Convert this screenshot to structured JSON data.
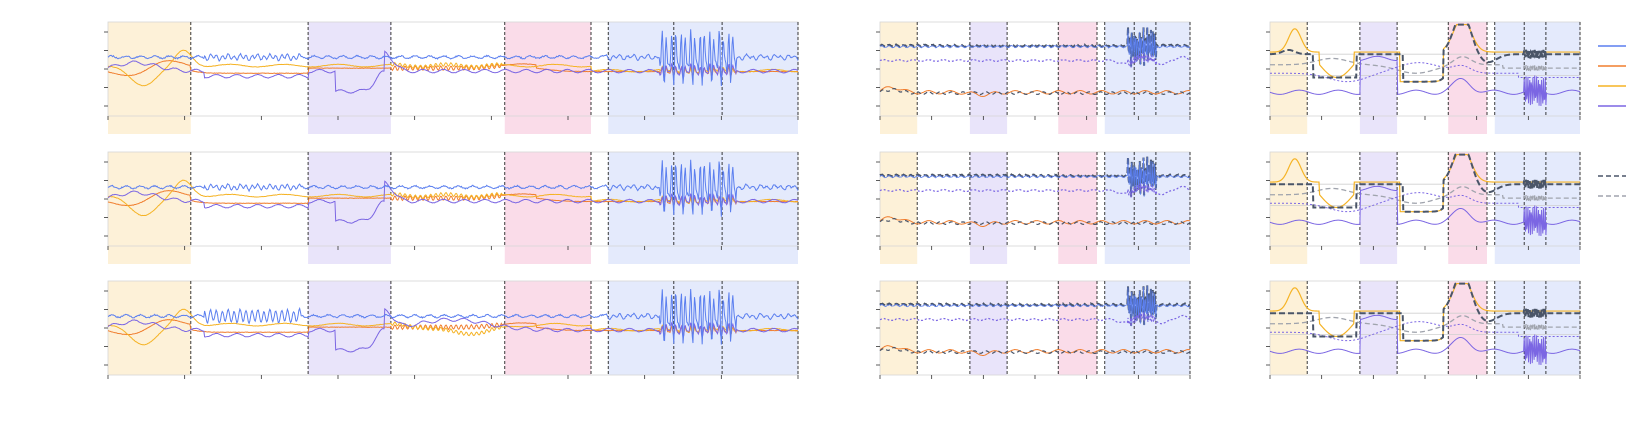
{
  "figure": {
    "colors": {
      "yellow_band": "#fdf1d8",
      "purple_band": "#e9e4fa",
      "pink_band": "#fadce9",
      "blue_band": "#e4eafc",
      "series_blue": "#5b7fef",
      "series_orange": "#f07e2f",
      "series_yellow": "#f5b325",
      "series_purple": "#7b66e3",
      "dash_dark": "#4a5568",
      "dash_gray": "#a0a4ad",
      "frame": "#d6d6d6",
      "tick": "#333333"
    }
  },
  "chart_data": [
    {
      "type": "line",
      "panel": "left",
      "rows": 3,
      "x_range": [
        0,
        100
      ],
      "bands": [
        {
          "from": 0,
          "to": 12,
          "color": "yellow"
        },
        {
          "from": 29,
          "to": 41,
          "color": "purple"
        },
        {
          "from": 57.5,
          "to": 70,
          "color": "pink"
        },
        {
          "from": 72.5,
          "to": 100,
          "color": "blue"
        }
      ],
      "dashed_lines": [
        12,
        29,
        41,
        57.5,
        70,
        72.5,
        82,
        89,
        100
      ],
      "series_colors": [
        "series_blue",
        "series_orange",
        "series_yellow",
        "series_purple"
      ],
      "grid": false
    },
    {
      "type": "line",
      "panel": "middle",
      "rows": 3,
      "x_range": [
        0,
        100
      ],
      "bands": [
        {
          "from": 0,
          "to": 12,
          "color": "yellow"
        },
        {
          "from": 29,
          "to": 41,
          "color": "purple"
        },
        {
          "from": 57.5,
          "to": 70,
          "color": "pink"
        },
        {
          "from": 72.5,
          "to": 100,
          "color": "blue"
        }
      ],
      "dashed_lines": [
        12,
        29,
        41,
        57.5,
        70,
        72.5,
        82,
        89,
        100
      ],
      "grid": false
    },
    {
      "type": "line",
      "panel": "right",
      "rows": 3,
      "x_range": [
        0,
        100
      ],
      "bands": [
        {
          "from": 0,
          "to": 12,
          "color": "yellow"
        },
        {
          "from": 29,
          "to": 41,
          "color": "purple"
        },
        {
          "from": 57.5,
          "to": 70,
          "color": "pink"
        },
        {
          "from": 72.5,
          "to": 100,
          "color": "blue"
        }
      ],
      "dashed_lines": [
        12,
        29,
        41,
        57.5,
        70,
        72.5,
        82,
        89,
        100
      ],
      "grid": true,
      "legend": {
        "placement": "right",
        "entries": [
          {
            "style": "solid",
            "color": "series_blue"
          },
          {
            "style": "solid",
            "color": "series_orange"
          },
          {
            "style": "solid",
            "color": "series_yellow"
          },
          {
            "style": "solid",
            "color": "series_purple"
          },
          {
            "style": "dashed",
            "color": "dash_dark"
          },
          {
            "style": "dashed",
            "color": "dash_gray"
          }
        ]
      }
    }
  ]
}
